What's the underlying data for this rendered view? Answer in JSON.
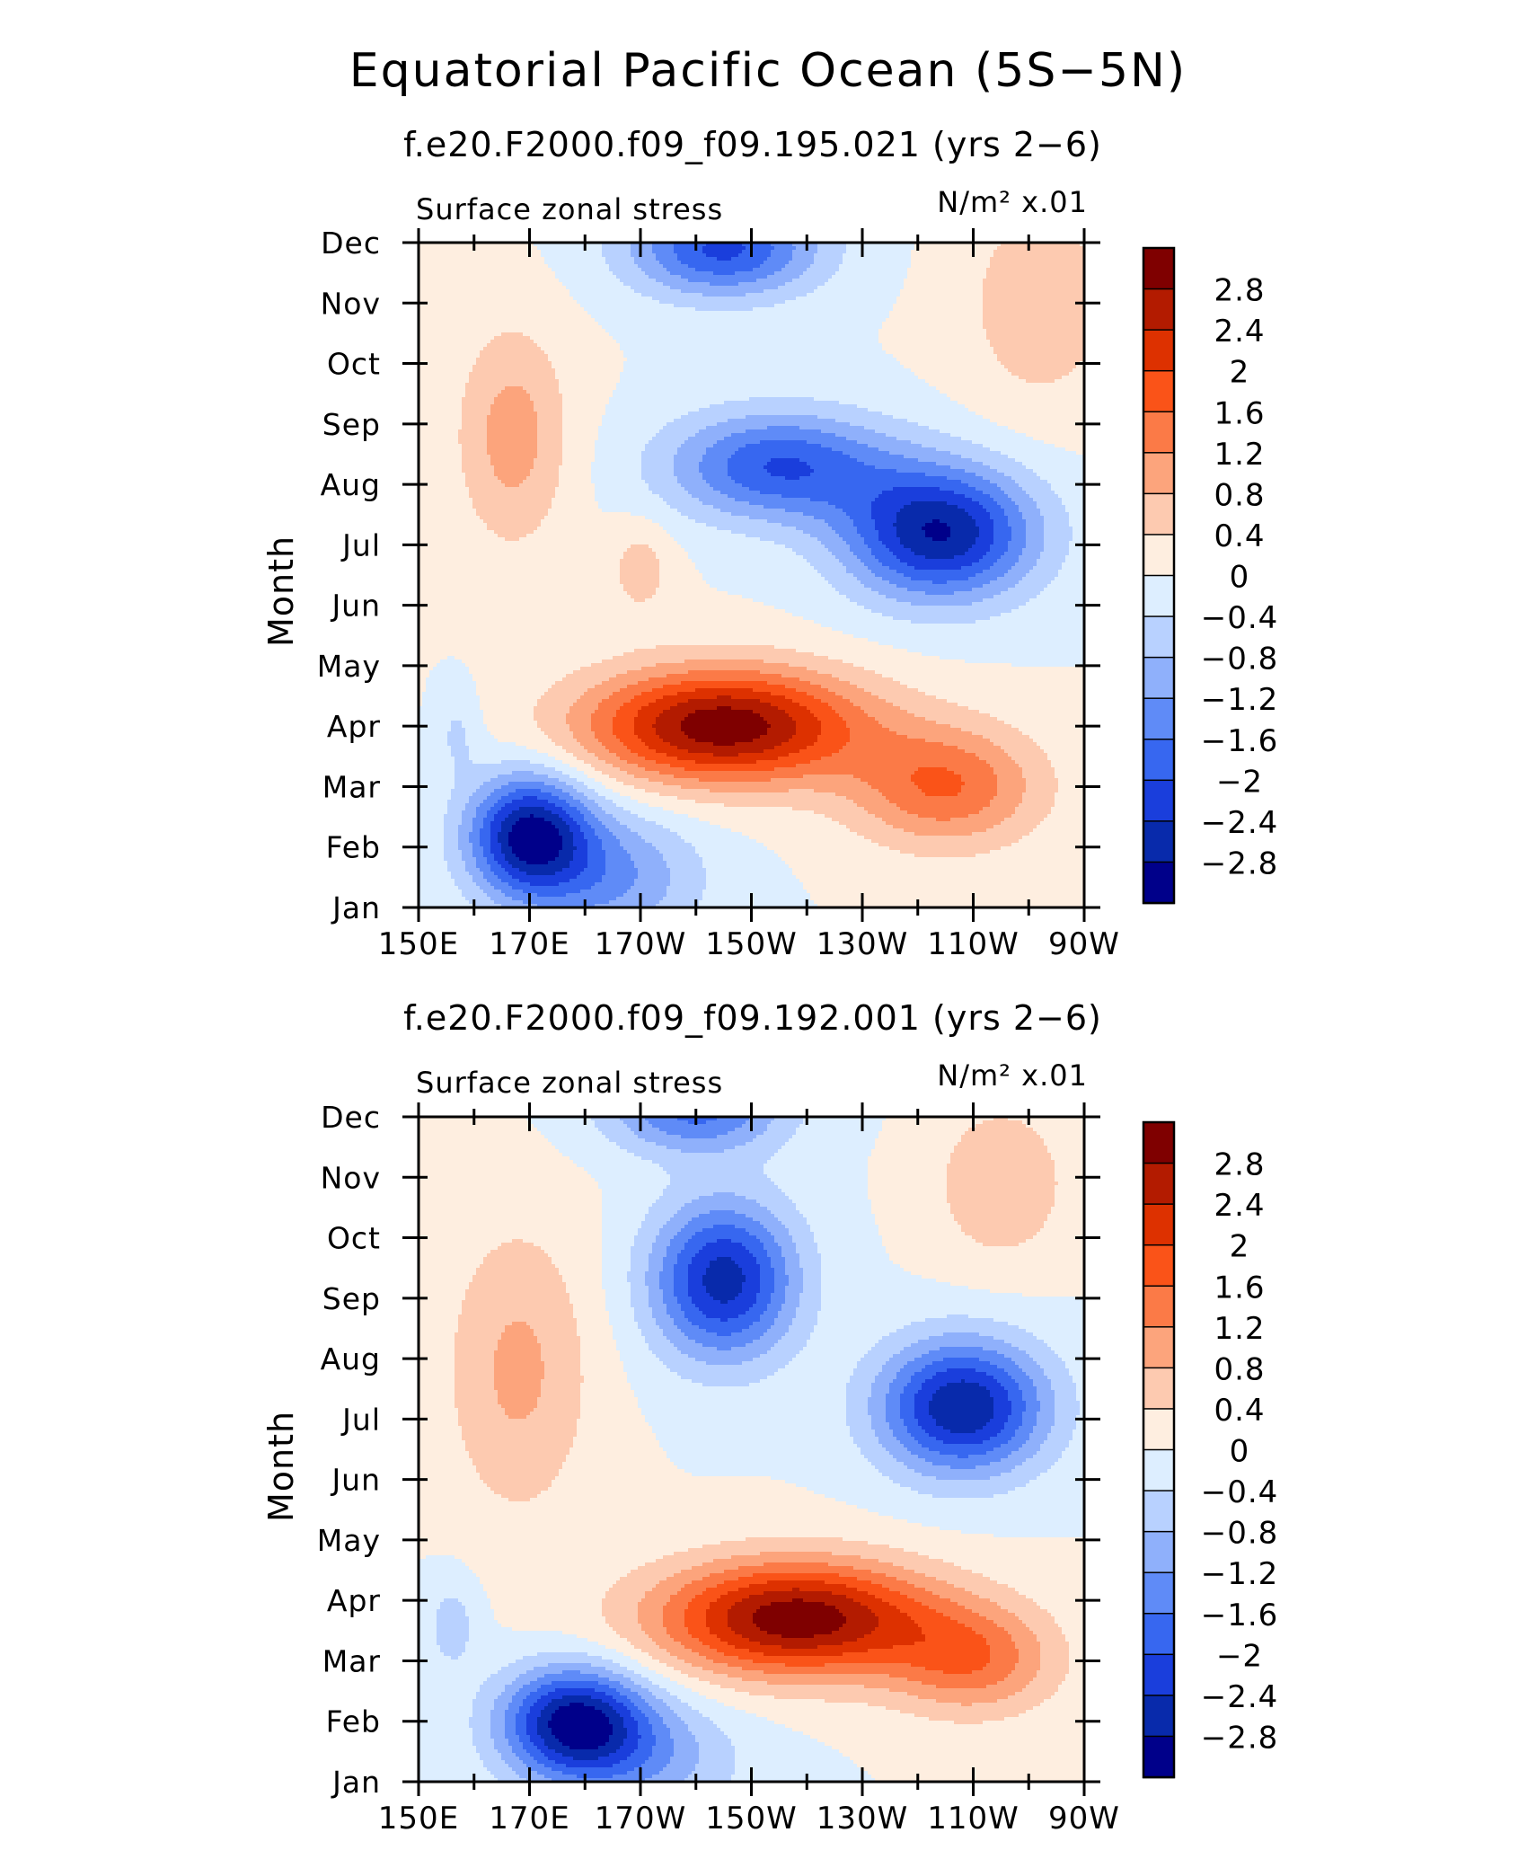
{
  "figure": {
    "title": "Equatorial Pacific Ocean (5S−5N)"
  },
  "chart_data": [
    {
      "type": "heatmap",
      "subtitle": "f.e20.F2000.f09_f09.195.021 (yrs 2−6)",
      "left_label": "Surface zonal stress",
      "units_label": "N/m² x.01",
      "ylabel": "Month",
      "xlabel": "",
      "x_ticks": [
        "150E",
        "170E",
        "170W",
        "150W",
        "130W",
        "110W",
        "90W"
      ],
      "x_tick_values": [
        150,
        170,
        190,
        210,
        230,
        250,
        270
      ],
      "y_ticks": [
        "Jan",
        "Feb",
        "Mar",
        "Apr",
        "May",
        "Jun",
        "Jul",
        "Aug",
        "Sep",
        "Oct",
        "Nov",
        "Dec"
      ],
      "xlim": [
        150,
        270
      ],
      "ylim": [
        1,
        12
      ],
      "colorbar_levels": [
        "2.8",
        "2.4",
        "2",
        "1.6",
        "1.2",
        "0.8",
        "0.4",
        "0",
        "−0.4",
        "−0.8",
        "−1.2",
        "−1.6",
        "−2",
        "−2.4",
        "−2.8"
      ],
      "colorbar_colors": [
        "#7f0000",
        "#b31b00",
        "#dd3100",
        "#fa5318",
        "#fb7a47",
        "#fca47c",
        "#fdcab0",
        "#feeee0",
        "#ddeeff",
        "#b8d1ff",
        "#8fb0fb",
        "#5f8bf7",
        "#3767f0",
        "#1a3edc",
        "#082aab",
        "#00008a"
      ],
      "features": [
        {
          "x": 205,
          "y": 4.0,
          "sx": 25,
          "sy": 0.95,
          "a": 3.1
        },
        {
          "x": 245,
          "y": 3.0,
          "sx": 17,
          "sy": 1.0,
          "a": 1.6
        },
        {
          "x": 170,
          "y": 2.2,
          "sx": 11,
          "sy": 1.0,
          "a": -2.9
        },
        {
          "x": 185,
          "y": 1.5,
          "sx": 16,
          "sy": 1.1,
          "a": -1.2
        },
        {
          "x": 244,
          "y": 7.2,
          "sx": 17,
          "sy": 1.1,
          "a": -2.8
        },
        {
          "x": 215,
          "y": 8.3,
          "sx": 20,
          "sy": 0.9,
          "a": -2.0
        },
        {
          "x": 205,
          "y": 11.9,
          "sx": 17,
          "sy": 0.8,
          "a": -2.1
        },
        {
          "x": 167,
          "y": 8.8,
          "sx": 10,
          "sy": 1.8,
          "a": 1.0
        },
        {
          "x": 190,
          "y": 6.6,
          "sx": 6,
          "sy": 0.8,
          "a": 0.6
        },
        {
          "x": 262,
          "y": 11.0,
          "sx": 14,
          "sy": 1.8,
          "a": 0.7
        },
        {
          "x": 157,
          "y": 3.9,
          "sx": 4,
          "sy": 0.7,
          "a": -0.5
        }
      ]
    },
    {
      "type": "heatmap",
      "subtitle": "f.e20.F2000.f09_f09.192.001 (yrs 2−6)",
      "left_label": "Surface zonal stress",
      "units_label": "N/m² x.01",
      "ylabel": "Month",
      "xlabel": "",
      "x_ticks": [
        "150E",
        "170E",
        "170W",
        "150W",
        "130W",
        "110W",
        "90W"
      ],
      "x_tick_values": [
        150,
        170,
        190,
        210,
        230,
        250,
        270
      ],
      "y_ticks": [
        "Jan",
        "Feb",
        "Mar",
        "Apr",
        "May",
        "Jun",
        "Jul",
        "Aug",
        "Sep",
        "Oct",
        "Nov",
        "Dec"
      ],
      "xlim": [
        150,
        270
      ],
      "ylim": [
        1,
        12
      ],
      "colorbar_levels": [
        "2.8",
        "2.4",
        "2",
        "1.6",
        "1.2",
        "0.8",
        "0.4",
        "0",
        "−0.4",
        "−0.8",
        "−1.2",
        "−1.6",
        "−2",
        "−2.4",
        "−2.8"
      ],
      "colorbar_colors": [
        "#7f0000",
        "#b31b00",
        "#dd3100",
        "#fa5318",
        "#fb7a47",
        "#fca47c",
        "#fdcab0",
        "#feeee0",
        "#ddeeff",
        "#b8d1ff",
        "#8fb0fb",
        "#5f8bf7",
        "#3767f0",
        "#1a3edc",
        "#082aab",
        "#00008a"
      ],
      "features": [
        {
          "x": 218,
          "y": 3.7,
          "sx": 25,
          "sy": 0.95,
          "a": 3.1
        },
        {
          "x": 250,
          "y": 3.0,
          "sx": 15,
          "sy": 0.9,
          "a": 1.4
        },
        {
          "x": 178,
          "y": 2.0,
          "sx": 13,
          "sy": 0.9,
          "a": -2.8
        },
        {
          "x": 190,
          "y": 1.4,
          "sx": 18,
          "sy": 1.0,
          "a": -1.0
        },
        {
          "x": 248,
          "y": 7.2,
          "sx": 15,
          "sy": 1.1,
          "a": -2.8
        },
        {
          "x": 205,
          "y": 9.3,
          "sx": 13,
          "sy": 1.3,
          "a": -2.6
        },
        {
          "x": 200,
          "y": 12.1,
          "sx": 16,
          "sy": 0.7,
          "a": -1.7
        },
        {
          "x": 168,
          "y": 7.8,
          "sx": 13,
          "sy": 2.4,
          "a": 0.9
        },
        {
          "x": 255,
          "y": 10.9,
          "sx": 12,
          "sy": 1.3,
          "a": 0.8
        },
        {
          "x": 156,
          "y": 3.6,
          "sx": 5,
          "sy": 0.8,
          "a": -0.6
        }
      ]
    }
  ]
}
